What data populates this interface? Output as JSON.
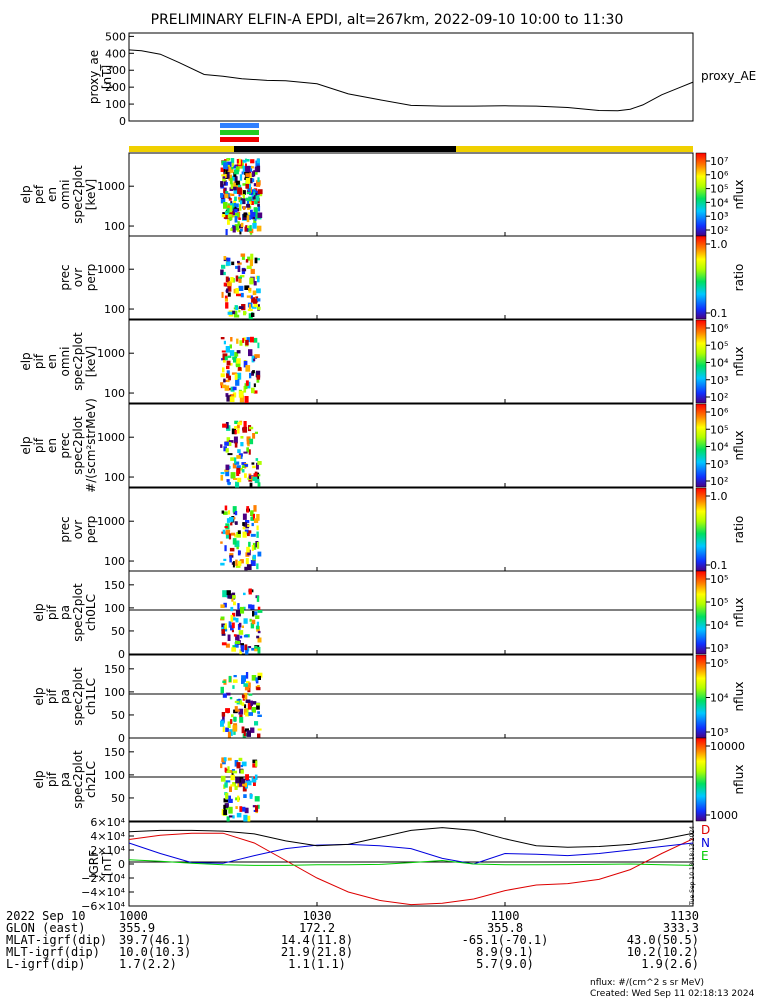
{
  "title": "PRELIMINARY ELFIN-A EPDI, alt=267km, 2022-09-10 10:00 to 11:30",
  "chart_data": {
    "type": "line",
    "x_tick_labels": [
      "1000",
      "1030",
      "1100",
      "1130"
    ],
    "panels": [
      {
        "id": "ae",
        "ylabel_lines": [
          "proxy_ae",
          "[nT]"
        ],
        "yticks": [
          "500",
          "400",
          "300",
          "200",
          "100",
          "0"
        ],
        "ylim": [
          0,
          520
        ],
        "legend": "proxy_AE",
        "series": [
          {
            "x": [
              "10:00",
              "10:02",
              "10:05",
              "10:08",
              "10:12",
              "10:15",
              "10:18",
              "10:22",
              "10:25",
              "10:30",
              "10:35",
              "10:40",
              "10:45",
              "10:50",
              "10:55",
              "11:00",
              "11:05",
              "11:10",
              "11:15",
              "11:18",
              "11:20",
              "11:22",
              "11:25",
              "11:28",
              "11:30"
            ],
            "y": [
              420,
              415,
              395,
              345,
              275,
              265,
              250,
              240,
              238,
              220,
              160,
              125,
              92,
              88,
              88,
              90,
              88,
              80,
              62,
              60,
              70,
              95,
              155,
              200,
              230
            ]
          }
        ]
      },
      {
        "id": "igrf",
        "ylabel_lines": [
          "IGRF",
          "[nT]"
        ],
        "yticks": [
          "6×10⁴",
          "4×10⁴",
          "2×10⁴",
          "0",
          "−2×10⁴",
          "−4×10⁴",
          "−6×10⁴"
        ],
        "ylim": [
          -60000,
          60000
        ],
        "series": [
          {
            "name": "D",
            "color": "#dd0000",
            "x": [
              "10:00",
              "10:05",
              "10:10",
              "10:15",
              "10:20",
              "10:25",
              "10:30",
              "10:35",
              "10:40",
              "10:45",
              "10:50",
              "10:55",
              "11:00",
              "11:05",
              "11:10",
              "11:15",
              "11:20",
              "11:25",
              "11:30"
            ],
            "y": [
              35000,
              41000,
              44000,
              44000,
              30000,
              5000,
              -20000,
              -40000,
              -52000,
              -58000,
              -56000,
              -50000,
              -38000,
              -30000,
              -28000,
              -22000,
              -8000,
              15000,
              36000
            ]
          },
          {
            "name": "N",
            "color": "#0000dd",
            "x": [
              "10:00",
              "10:05",
              "10:10",
              "10:15",
              "10:20",
              "10:25",
              "10:30",
              "10:35",
              "10:40",
              "10:45",
              "10:50",
              "10:55",
              "11:00",
              "11:05",
              "11:10",
              "11:15",
              "11:20",
              "11:25",
              "11:30"
            ],
            "y": [
              30000,
              15000,
              2000,
              1000,
              12000,
              22000,
              27000,
              28000,
              26000,
              22000,
              8000,
              0,
              15000,
              14000,
              12000,
              15000,
              20000,
              25000,
              30000
            ]
          },
          {
            "name": "E",
            "color": "#00cc00",
            "x": [
              "10:00",
              "10:05",
              "10:10",
              "10:15",
              "10:20",
              "10:25",
              "10:30",
              "10:35",
              "10:40",
              "10:45",
              "10:50",
              "10:55",
              "11:00",
              "11:05",
              "11:10",
              "11:15",
              "11:20",
              "11:25",
              "11:30"
            ],
            "y": [
              6000,
              4000,
              1000,
              -1000,
              -2000,
              -2000,
              -1000,
              -1000,
              -500,
              2000,
              5000,
              0,
              -1000,
              -1000,
              -800,
              -500,
              0,
              -1000,
              -2000
            ]
          },
          {
            "name": "",
            "color": "#000000",
            "x": [
              "10:00",
              "10:05",
              "10:10",
              "10:15",
              "10:20",
              "10:25",
              "10:30",
              "10:35",
              "10:40",
              "10:45",
              "10:50",
              "10:55",
              "11:00",
              "11:05",
              "11:10",
              "11:15",
              "11:20",
              "11:25",
              "11:30"
            ],
            "y": [
              46000,
              48000,
              48000,
              47000,
              43000,
              33000,
              26000,
              28000,
              38000,
              48000,
              52000,
              48000,
              36000,
              26000,
              24000,
              25000,
              28000,
              35000,
              44000
            ]
          }
        ]
      }
    ],
    "spectrogram_panels": [
      {
        "id": "elp-en-omni",
        "ylabel_lines": [
          "elp",
          "pef",
          "en",
          "omni",
          "spec2plot",
          "[keV]"
        ],
        "yticks": [
          "1000",
          "100"
        ],
        "colorbar_label": "nflux",
        "colorbar_ticks": [
          "10⁷",
          "10⁶",
          "10⁵",
          "10⁴",
          "10³",
          "10²"
        ]
      },
      {
        "id": "prec-ovr-perp-1",
        "ylabel_lines": [
          "prec",
          "ovr",
          "perp"
        ],
        "yticks": [
          "1000",
          "100"
        ],
        "colorbar_label": "ratio",
        "colorbar_ticks": [
          "1.0",
          "0.1"
        ]
      },
      {
        "id": "elp-pif-en-omni",
        "ylabel_lines": [
          "elp",
          "pif",
          "en",
          "omni",
          "spec2plot",
          "[keV]"
        ],
        "yticks": [
          "1000",
          "100"
        ],
        "colorbar_label": "nflux",
        "colorbar_ticks": [
          "10⁶",
          "10⁵",
          "10⁴",
          "10³",
          "10²"
        ]
      },
      {
        "id": "elp-pif-en-prec",
        "ylabel_lines": [
          "elp",
          "pif",
          "en",
          "prec",
          "spec2plot",
          "#/(scm²strMeV)"
        ],
        "yticks": [
          "1000",
          "100"
        ],
        "colorbar_label": "nflux",
        "colorbar_ticks": [
          "10⁶",
          "10⁵",
          "10⁴",
          "10³",
          "10²"
        ]
      },
      {
        "id": "prec-ovr-perp-2",
        "ylabel_lines": [
          "prec",
          "ovr",
          "perp"
        ],
        "yticks": [
          "1000",
          "100"
        ],
        "colorbar_label": "ratio",
        "colorbar_ticks": [
          "1.0",
          "0.1"
        ]
      },
      {
        "id": "elp-pif-pa-ch0LC",
        "ylabel_lines": [
          "elp",
          "pif",
          "pa",
          "spec2plot",
          "ch0LC"
        ],
        "yticks": [
          "150",
          "100",
          "50",
          "0"
        ],
        "colorbar_label": "nflux",
        "colorbar_ticks": [
          "10⁵",
          "10⁵",
          "10⁴",
          "10³"
        ]
      },
      {
        "id": "elp-pif-pa-ch1LC",
        "ylabel_lines": [
          "elp",
          "pif",
          "pa",
          "spec2plot",
          "ch1LC"
        ],
        "yticks": [
          "150",
          "100",
          "50",
          "0"
        ],
        "colorbar_label": "nflux",
        "colorbar_ticks": [
          "10⁵",
          "10⁴",
          "10³"
        ]
      },
      {
        "id": "elp-pif-pa-ch2LC",
        "ylabel_lines": [
          "elp",
          "pif",
          "pa",
          "spec2plot",
          "ch2LC"
        ],
        "yticks": [
          "150",
          "100",
          "50"
        ],
        "colorbar_label": "nflux",
        "colorbar_ticks": [
          "10000",
          "1000"
        ]
      }
    ]
  },
  "footer": {
    "rows": [
      {
        "label": "2022 Sep 10",
        "values": [
          "1000",
          "1030",
          "1100",
          "1130"
        ]
      },
      {
        "label": "GLON (east)",
        "values": [
          "355.9",
          "172.2",
          "355.8",
          "333.3"
        ]
      },
      {
        "label": "MLAT-igrf(dip)",
        "values": [
          "39.7(46.1)",
          "14.4(11.8)",
          "-65.1(-70.1)",
          "43.0(50.5)"
        ]
      },
      {
        "label": "MLT-igrf(dip)",
        "values": [
          "10.0(10.3)",
          "21.9(21.8)",
          "8.9(9.1)",
          "10.2(10.2)"
        ]
      },
      {
        "label": "L-igrf(dip)",
        "values": [
          "1.7(2.2)",
          "1.1(1.1)",
          "5.7(9.0)",
          "1.9(2.6)"
        ]
      }
    ],
    "units_note": "nflux: #/(cm^2 s sr MeV)",
    "created": "Created: Wed Sep 11 02:18:13 2024",
    "side_stamp": "Tue Sep 10 18:18:13 2024"
  },
  "colors": {
    "yellow_bar": "#f0d000",
    "science_zone_black": "#000000",
    "blue": "#3080ff",
    "green": "#22cc22",
    "red": "#ee0000"
  }
}
